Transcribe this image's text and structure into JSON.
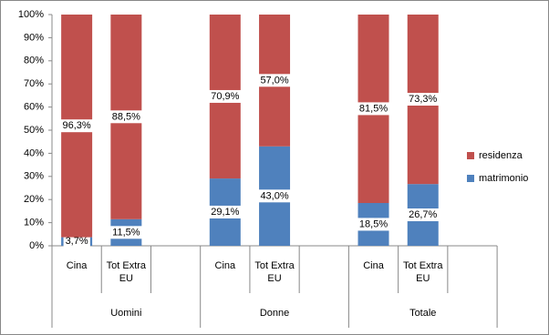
{
  "chart_data": {
    "type": "stacked-bar",
    "groups": [
      "Uomini",
      "Donne",
      "Totale"
    ],
    "categories": [
      "Cina",
      "Tot Extra EU",
      "Cina",
      "Tot Extra EU",
      "Cina",
      "Tot Extra EU"
    ],
    "series": [
      {
        "name": "matrimonio",
        "color": "#4f81bd",
        "values": [
          3.7,
          11.5,
          29.1,
          43.0,
          18.5,
          26.7
        ],
        "value_labels": [
          "3,7%",
          "11,5%",
          "29,1%",
          "43,0%",
          "18,5%",
          "26,7%"
        ]
      },
      {
        "name": "residenza",
        "color": "#c0504d",
        "values": [
          96.3,
          88.5,
          70.9,
          57.0,
          81.5,
          73.3
        ],
        "value_labels": [
          "96,3%",
          "88,5%",
          "70,9%",
          "57,0%",
          "81,5%",
          "73,3%"
        ]
      }
    ],
    "ylim": [
      0,
      100
    ],
    "yticks": [
      {
        "value": 0,
        "label": "0%"
      },
      {
        "value": 10,
        "label": "10%"
      },
      {
        "value": 20,
        "label": "20%"
      },
      {
        "value": 30,
        "label": "30%"
      },
      {
        "value": 40,
        "label": "40%"
      },
      {
        "value": 50,
        "label": "50%"
      },
      {
        "value": 60,
        "label": "60%"
      },
      {
        "value": 70,
        "label": "70%"
      },
      {
        "value": 80,
        "label": "80%"
      },
      {
        "value": 90,
        "label": "90%"
      },
      {
        "value": 100,
        "label": "100%"
      }
    ],
    "legend": "right"
  }
}
